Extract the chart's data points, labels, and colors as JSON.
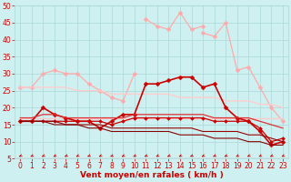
{
  "x": [
    0,
    1,
    2,
    3,
    4,
    5,
    6,
    7,
    8,
    9,
    10,
    11,
    12,
    13,
    14,
    15,
    16,
    17,
    18,
    19,
    20,
    21,
    22,
    23
  ],
  "series": [
    {
      "name": "light_pink_peak",
      "color": "#ffaaaa",
      "linewidth": 0.9,
      "marker": "D",
      "markersize": 2.5,
      "values": [
        null,
        null,
        null,
        null,
        null,
        null,
        null,
        null,
        null,
        null,
        null,
        46,
        44,
        43,
        48,
        43,
        44,
        null,
        null,
        null,
        null,
        null,
        null,
        null
      ]
    },
    {
      "name": "light_pink_upper",
      "color": "#ffaaaa",
      "linewidth": 0.9,
      "marker": "D",
      "markersize": 2.5,
      "values": [
        26,
        26,
        30,
        31,
        30,
        30,
        27,
        25,
        23,
        22,
        30,
        null,
        null,
        null,
        null,
        null,
        42,
        41,
        45,
        31,
        32,
        26,
        20,
        16
      ]
    },
    {
      "name": "pink_diagonal_upper",
      "color": "#ffcccc",
      "linewidth": 1.0,
      "marker": null,
      "markersize": 0,
      "values": [
        26,
        26,
        26,
        26,
        26,
        25,
        25,
        25,
        24,
        24,
        24,
        24,
        24,
        24,
        23,
        23,
        23,
        23,
        22,
        22,
        22,
        21,
        21,
        20
      ]
    },
    {
      "name": "pink_diagonal_lower",
      "color": "#ffcccc",
      "linewidth": 1.0,
      "marker": null,
      "markersize": 0,
      "values": [
        17,
        17,
        17,
        17,
        17,
        17,
        17,
        17,
        17,
        17,
        17,
        17,
        17,
        17,
        17,
        17,
        17,
        17,
        17,
        17,
        17,
        17,
        17,
        17
      ]
    },
    {
      "name": "dark_red_main",
      "color": "#cc0000",
      "linewidth": 1.2,
      "marker": "D",
      "markersize": 2.5,
      "values": [
        16,
        16,
        20,
        18,
        17,
        16,
        16,
        14,
        16,
        18,
        18,
        27,
        27,
        28,
        29,
        29,
        26,
        27,
        20,
        17,
        16,
        13,
        9,
        10
      ]
    },
    {
      "name": "red_flat_upper",
      "color": "#dd3333",
      "linewidth": 0.9,
      "marker": null,
      "markersize": 0,
      "values": [
        17,
        17,
        18,
        18,
        17,
        17,
        17,
        17,
        17,
        17,
        18,
        18,
        18,
        18,
        18,
        18,
        18,
        17,
        17,
        17,
        17,
        16,
        15,
        14
      ]
    },
    {
      "name": "red_flat_mid",
      "color": "#cc0000",
      "linewidth": 0.9,
      "marker": "D",
      "markersize": 2.0,
      "values": [
        16,
        16,
        16,
        16,
        16,
        16,
        16,
        16,
        15,
        16,
        17,
        17,
        17,
        17,
        17,
        17,
        17,
        16,
        16,
        16,
        16,
        14,
        10,
        11
      ]
    },
    {
      "name": "dark_lower1",
      "color": "#990000",
      "linewidth": 0.8,
      "marker": null,
      "markersize": 0,
      "values": [
        16,
        16,
        16,
        16,
        15,
        15,
        15,
        15,
        14,
        14,
        14,
        14,
        14,
        14,
        14,
        14,
        13,
        13,
        13,
        13,
        12,
        12,
        11,
        10
      ]
    },
    {
      "name": "dark_lower2",
      "color": "#880000",
      "linewidth": 0.8,
      "marker": null,
      "markersize": 0,
      "values": [
        16,
        16,
        16,
        15,
        15,
        15,
        14,
        14,
        13,
        13,
        13,
        13,
        13,
        13,
        12,
        12,
        12,
        11,
        11,
        11,
        10,
        10,
        9,
        9
      ]
    }
  ],
  "xlabel": "Vent moyen/en rafales ( km/h )",
  "xlim": [
    -0.5,
    23.5
  ],
  "ylim": [
    5,
    50
  ],
  "yticks": [
    5,
    10,
    15,
    20,
    25,
    30,
    35,
    40,
    45,
    50
  ],
  "xticks": [
    0,
    1,
    2,
    3,
    4,
    5,
    6,
    7,
    8,
    9,
    10,
    11,
    12,
    13,
    14,
    15,
    16,
    17,
    18,
    19,
    20,
    21,
    22,
    23
  ],
  "bg_color": "#cff0f0",
  "grid_color": "#aad8d8",
  "label_color": "#cc0000",
  "tick_fontsize": 5.5,
  "xlabel_fontsize": 6.5,
  "arrow_color": "#cc0000",
  "hline_color": "#cc0000"
}
